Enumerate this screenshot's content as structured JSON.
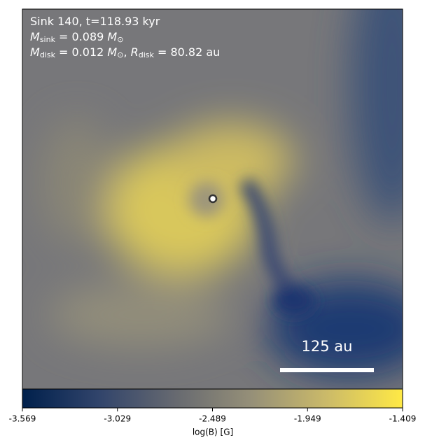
{
  "chart_data": {
    "type": "heatmap",
    "annotations": [
      [
        "Sink 140, t=118.93 kyr"
      ],
      [
        "M",
        "sink",
        " = 0.089 ",
        "M",
        "⊙"
      ],
      [
        "M",
        "disk",
        " = 0.012 ",
        "M",
        "⊙",
        ", ",
        "R",
        "disk",
        " = 80.82 au"
      ]
    ],
    "scale_bar_label": "125 au",
    "colorbar": {
      "label": "log(B) [G]",
      "xlim": [
        -3.569,
        -1.409
      ],
      "xticks": [
        -3.569,
        -3.029,
        -2.489,
        -1.949,
        -1.409
      ],
      "colormap": "cividis"
    }
  }
}
